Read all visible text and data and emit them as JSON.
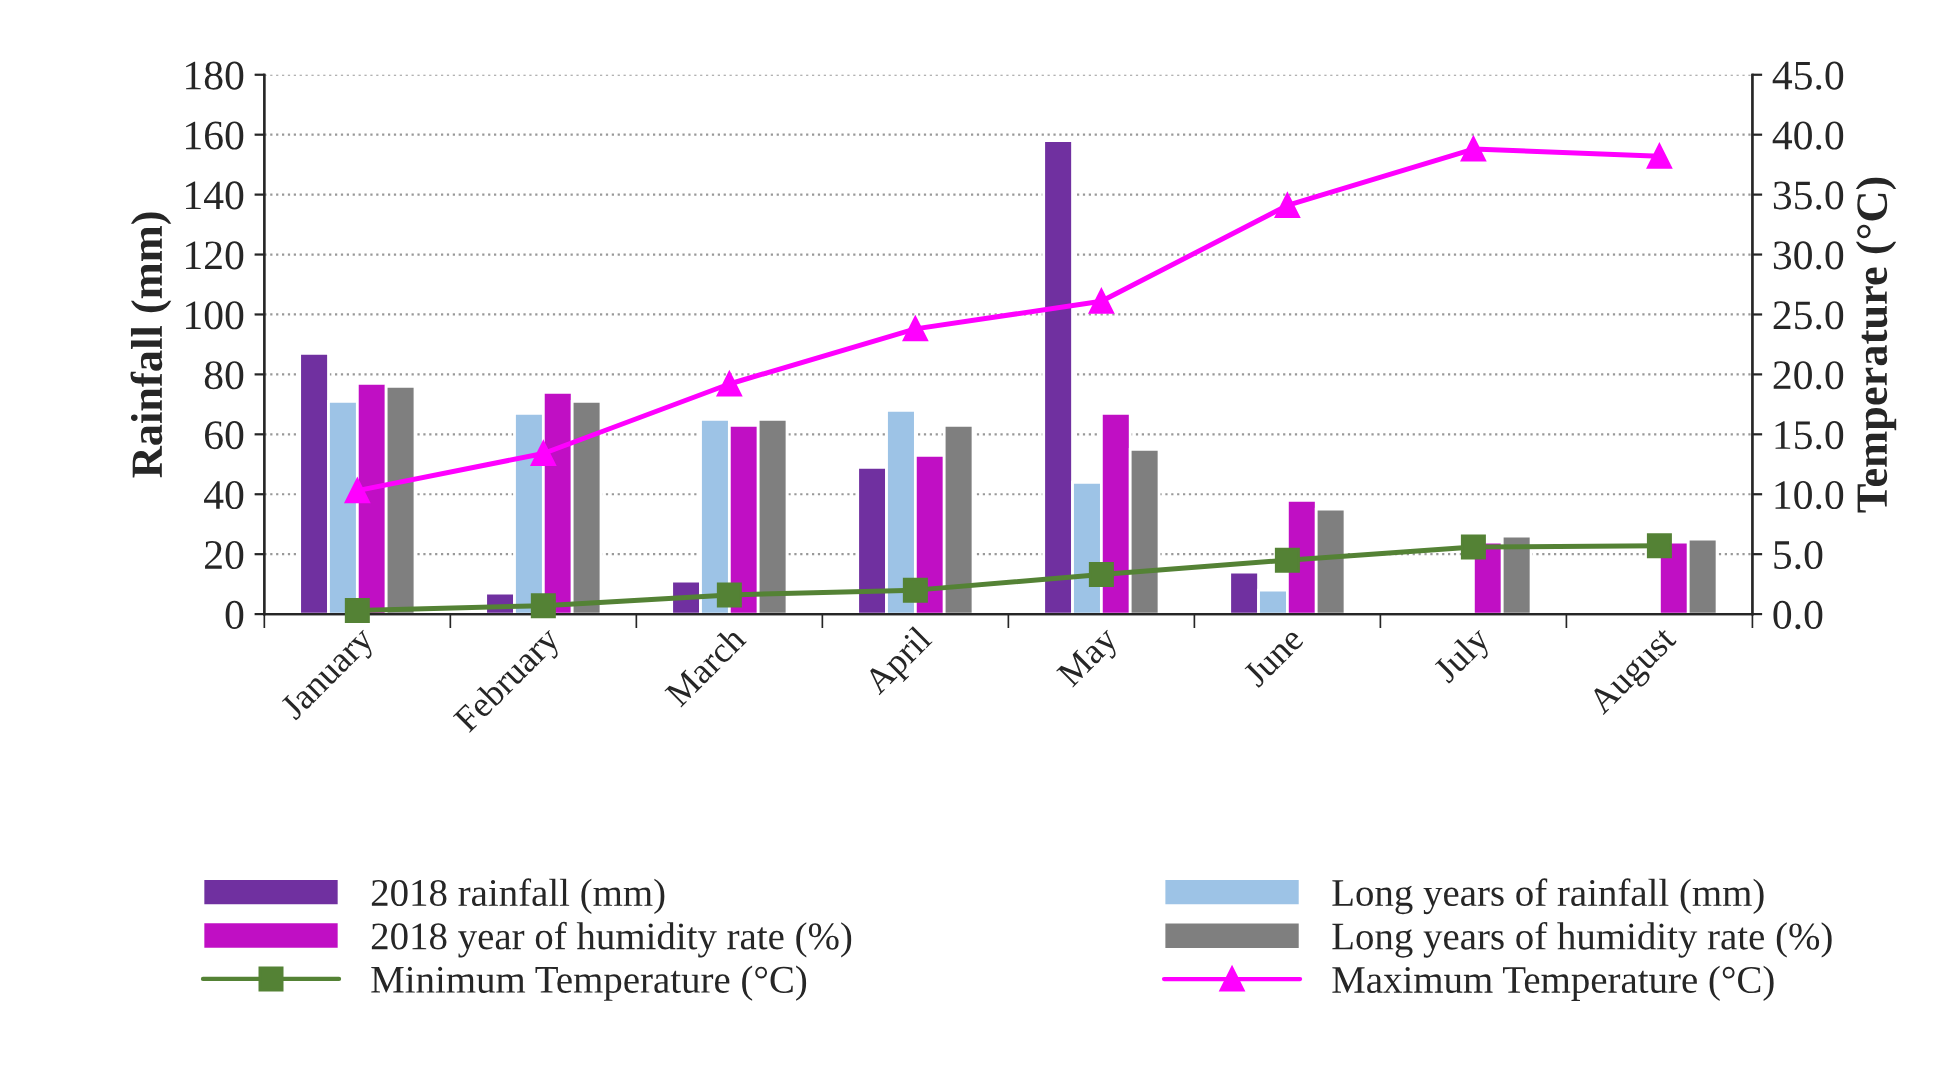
{
  "chart_data": {
    "type": "bar",
    "ylabel": "Rainfall (mm)",
    "y2label": "Temperature (°C)",
    "categories": [
      "January",
      "February",
      "March",
      "April",
      "May",
      "June",
      "July",
      "August"
    ],
    "series": [
      {
        "name": "2018 rainfall (mm)",
        "color": "#7030a0",
        "values": [
          87,
          7,
          11,
          49,
          158,
          14,
          null,
          null
        ]
      },
      {
        "name": "Long years of rainfall (mm)",
        "color": "#9dc3e6",
        "values": [
          71,
          67,
          65,
          68,
          44,
          8,
          null,
          null
        ]
      },
      {
        "name": "2018 year of humidity rate (%)",
        "color": "#c00fc4",
        "values": [
          77,
          74,
          63,
          53,
          67,
          38,
          24,
          24
        ]
      },
      {
        "name": "Long years of humidity rate (%)",
        "color": "#7f7f7f",
        "values": [
          76,
          71,
          65,
          63,
          55,
          35,
          26,
          25
        ]
      },
      {
        "name": "Minimum Temperature (°C)",
        "type": "line",
        "axis": "y2",
        "marker": "square",
        "color": "#548235",
        "values": [
          0.3,
          0.7,
          1.6,
          2.0,
          3.3,
          4.5,
          5.6,
          5.7
        ]
      },
      {
        "name": "Maximum Temperature (°C)",
        "type": "line",
        "axis": "y2",
        "marker": "triangle",
        "color": "#ff00ff",
        "values": [
          10.3,
          13.4,
          19.2,
          23.8,
          26.1,
          34.1,
          38.8,
          38.2
        ]
      }
    ],
    "ylim": [
      0,
      180
    ],
    "yticks": [
      0,
      20,
      40,
      60,
      80,
      100,
      120,
      140,
      160,
      180
    ],
    "y2lim": [
      0,
      45
    ],
    "y2ticks": [
      {
        "value": 0,
        "label": "0.0"
      },
      {
        "value": 5,
        "label": "5.0"
      },
      {
        "value": 10,
        "label": "10.0"
      },
      {
        "value": 15,
        "label": "15.0"
      },
      {
        "value": 20,
        "label": "20.0"
      },
      {
        "value": 25,
        "label": "25.0"
      },
      {
        "value": 30,
        "label": "30.0"
      },
      {
        "value": 35,
        "label": "35.0"
      },
      {
        "value": 40,
        "label": "40.0"
      },
      {
        "value": 45,
        "label": "45.0"
      }
    ],
    "grid": "y",
    "legend": "bottom"
  }
}
